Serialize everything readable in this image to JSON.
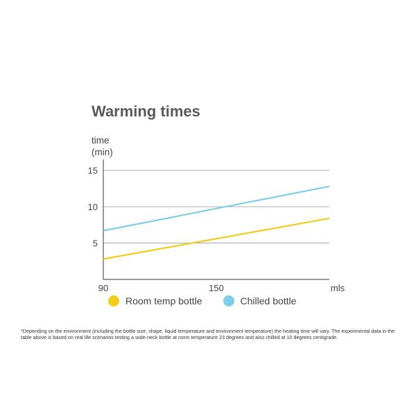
{
  "chart_data": {
    "type": "line",
    "title": "Warming times",
    "ylabel_line1": "time",
    "ylabel_line2": "(min)",
    "xunit": "mls",
    "x_ticks": [
      90,
      150
    ],
    "y_ticks": [
      5,
      10,
      15
    ],
    "xlim": [
      90,
      210
    ],
    "ylim": [
      0,
      16.5
    ],
    "grid": true,
    "legend_position": "bottom",
    "series": [
      {
        "name": "Room temp bottle",
        "color": "#f2cc1d",
        "x": [
          90,
          210
        ],
        "values": [
          2.8,
          8.4
        ]
      },
      {
        "name": "Chilled bottle",
        "color": "#7fcde6",
        "x": [
          90,
          210
        ],
        "values": [
          6.7,
          12.8
        ]
      }
    ]
  },
  "footnote": "*Depending on the environment (including the bottle size, shape, liquid temperature and environment temperature) the heating time will vary.  The experimental data in the table above is based on real life scenarios testing a wide-neck bottle at room temperature 23 degrees and also chilled at 10 degrees centigrade."
}
